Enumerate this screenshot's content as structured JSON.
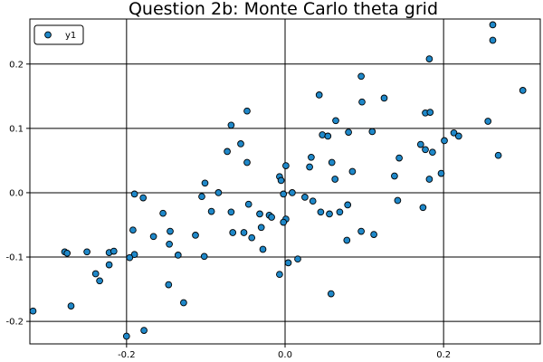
{
  "chart_data": {
    "type": "scatter",
    "title": "Question 2b: Monte Carlo theta grid",
    "xlabel": "",
    "ylabel": "",
    "xlim": [
      -0.322,
      0.322
    ],
    "ylim": [
      -0.235,
      0.27
    ],
    "x_ticks": [
      -0.2,
      0.0,
      0.2
    ],
    "x_tick_labels": [
      "-0.2",
      "0.0",
      "0.2"
    ],
    "y_ticks": [
      -0.2,
      -0.1,
      0.0,
      0.1,
      0.2
    ],
    "y_tick_labels": [
      "-0.2",
      "-0.1",
      "0.0",
      "0.1",
      "0.2"
    ],
    "grid": true,
    "legend_position": "top-left",
    "marker_color": "#1f88c9",
    "series": [
      {
        "name": "y1",
        "points": [
          [
            0.262,
            0.261
          ],
          [
            0.262,
            0.237
          ],
          [
            0.182,
            0.208
          ],
          [
            0.3,
            0.159
          ],
          [
            0.096,
            0.181
          ],
          [
            0.043,
            0.152
          ],
          [
            0.125,
            0.147
          ],
          [
            0.097,
            0.141
          ],
          [
            -0.048,
            0.127
          ],
          [
            0.177,
            0.124
          ],
          [
            0.183,
            0.125
          ],
          [
            0.064,
            0.112
          ],
          [
            0.256,
            0.111
          ],
          [
            -0.068,
            0.105
          ],
          [
            0.11,
            0.095
          ],
          [
            0.08,
            0.094
          ],
          [
            0.047,
            0.09
          ],
          [
            0.054,
            0.088
          ],
          [
            0.213,
            0.093
          ],
          [
            0.219,
            0.088
          ],
          [
            0.201,
            0.081
          ],
          [
            -0.056,
            0.076
          ],
          [
            0.171,
            0.075
          ],
          [
            0.177,
            0.067
          ],
          [
            0.186,
            0.063
          ],
          [
            -0.073,
            0.064
          ],
          [
            0.269,
            0.058
          ],
          [
            0.033,
            0.055
          ],
          [
            0.144,
            0.054
          ],
          [
            -0.048,
            0.047
          ],
          [
            0.059,
            0.047
          ],
          [
            0.001,
            0.042
          ],
          [
            0.031,
            0.04
          ],
          [
            0.085,
            0.033
          ],
          [
            0.197,
            0.03
          ],
          [
            0.138,
            0.026
          ],
          [
            -0.007,
            0.025
          ],
          [
            0.063,
            0.021
          ],
          [
            -0.005,
            0.019
          ],
          [
            0.182,
            0.021
          ],
          [
            -0.101,
            0.015
          ],
          [
            -0.19,
            -0.002
          ],
          [
            -0.179,
            -0.008
          ],
          [
            -0.084,
            0.0
          ],
          [
            -0.105,
            -0.006
          ],
          [
            0.009,
            0.0
          ],
          [
            -0.002,
            -0.002
          ],
          [
            0.025,
            -0.007
          ],
          [
            0.035,
            -0.013
          ],
          [
            0.142,
            -0.012
          ],
          [
            0.079,
            -0.019
          ],
          [
            -0.046,
            -0.018
          ],
          [
            0.174,
            -0.023
          ],
          [
            -0.093,
            -0.029
          ],
          [
            -0.068,
            -0.03
          ],
          [
            0.045,
            -0.03
          ],
          [
            -0.154,
            -0.032
          ],
          [
            -0.032,
            -0.033
          ],
          [
            -0.02,
            -0.035
          ],
          [
            -0.017,
            -0.038
          ],
          [
            0.056,
            -0.033
          ],
          [
            0.069,
            -0.03
          ],
          [
            0.001,
            -0.041
          ],
          [
            -0.002,
            -0.046
          ],
          [
            -0.03,
            -0.054
          ],
          [
            -0.192,
            -0.058
          ],
          [
            -0.145,
            -0.06
          ],
          [
            -0.066,
            -0.062
          ],
          [
            -0.052,
            -0.062
          ],
          [
            -0.042,
            -0.07
          ],
          [
            0.096,
            -0.06
          ],
          [
            0.112,
            -0.065
          ],
          [
            -0.166,
            -0.068
          ],
          [
            -0.113,
            -0.066
          ],
          [
            0.078,
            -0.074
          ],
          [
            -0.146,
            -0.08
          ],
          [
            -0.028,
            -0.088
          ],
          [
            -0.25,
            -0.092
          ],
          [
            -0.278,
            -0.092
          ],
          [
            -0.275,
            -0.094
          ],
          [
            -0.222,
            -0.093
          ],
          [
            -0.216,
            -0.091
          ],
          [
            -0.19,
            -0.096
          ],
          [
            -0.196,
            -0.101
          ],
          [
            -0.135,
            -0.097
          ],
          [
            -0.102,
            -0.099
          ],
          [
            0.016,
            -0.103
          ],
          [
            0.004,
            -0.109
          ],
          [
            -0.222,
            -0.112
          ],
          [
            -0.239,
            -0.126
          ],
          [
            -0.234,
            -0.137
          ],
          [
            -0.007,
            -0.127
          ],
          [
            -0.147,
            -0.143
          ],
          [
            0.058,
            -0.157
          ],
          [
            -0.128,
            -0.171
          ],
          [
            -0.27,
            -0.176
          ],
          [
            -0.318,
            -0.184
          ],
          [
            -0.178,
            -0.214
          ],
          [
            -0.2,
            -0.223
          ]
        ]
      }
    ]
  }
}
